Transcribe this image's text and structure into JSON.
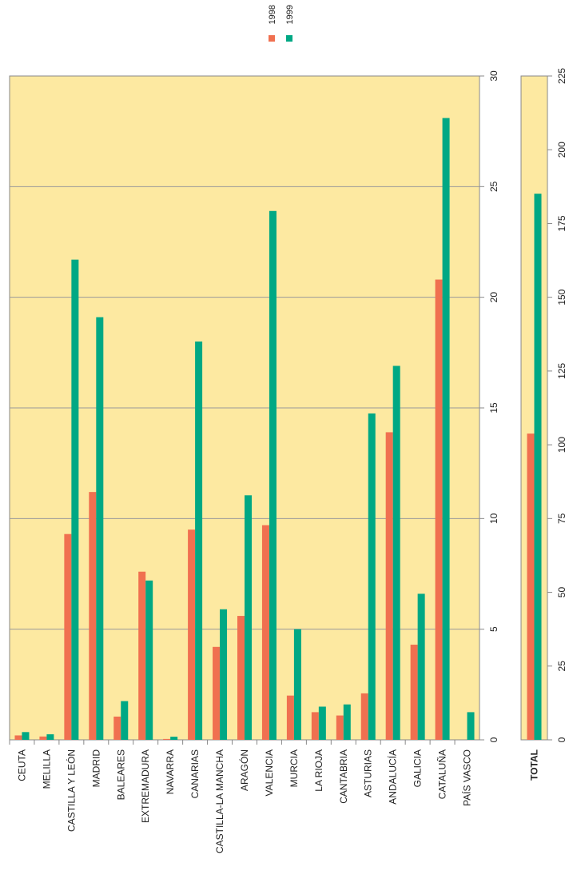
{
  "chart_data": [
    {
      "type": "bar",
      "categories": [
        "CEUTA",
        "MELILLA",
        "CASTILLA Y LEÓN",
        "MADRID",
        "BALEARES",
        "EXTREMADURA",
        "NAVARRA",
        "CANARIAS",
        "CASTILLA-LA MANCHA",
        "ARAGÓN",
        "VALENCIA",
        "MURCIA",
        "LA RIOJA",
        "CANTABRIA",
        "ASTURIAS",
        "ANDALUCÍA",
        "GALICIA",
        "CATALUÑA",
        "PAÍS VASCO"
      ],
      "series": [
        {
          "name": "1998",
          "color": "#f07050",
          "values": [
            0.2,
            0.15,
            9.3,
            11.2,
            1.05,
            7.6,
            0.04,
            9.5,
            4.2,
            5.6,
            9.7,
            2.0,
            1.25,
            1.1,
            2.1,
            13.9,
            4.3,
            20.8,
            0
          ]
        },
        {
          "name": "1999",
          "color": "#00a884",
          "values": [
            0.35,
            0.25,
            21.7,
            19.1,
            1.75,
            7.2,
            0.14,
            18.0,
            5.9,
            11.05,
            23.9,
            5.0,
            1.5,
            1.6,
            14.75,
            16.9,
            6.6,
            28.1,
            1.25
          ]
        }
      ],
      "ylim": [
        0,
        30
      ],
      "yticks": [
        0,
        5,
        10,
        15,
        20,
        25,
        30
      ],
      "grid": true,
      "background": "#fde9a1",
      "legend": "top"
    },
    {
      "type": "bar",
      "categories": [
        "TOTAL"
      ],
      "series": [
        {
          "color": "#f07050",
          "values": [
            103.8
          ]
        },
        {
          "color": "#00a884",
          "values": [
            185.1
          ]
        }
      ],
      "ylim": [
        0,
        225
      ],
      "yticks": [
        0,
        25,
        50,
        75,
        100,
        125,
        150,
        175,
        200,
        225
      ],
      "grid": false,
      "background": "#fde9a1"
    }
  ]
}
